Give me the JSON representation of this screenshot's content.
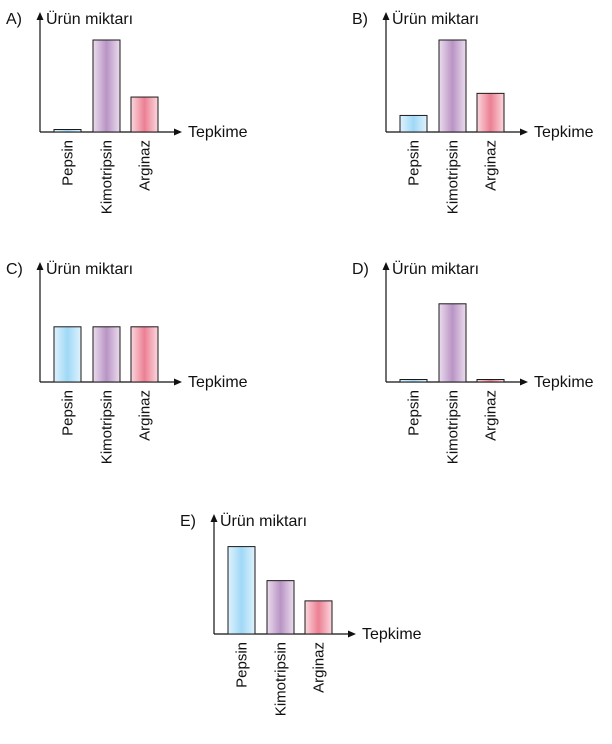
{
  "palette": {
    "axis": "#111111",
    "bar_stroke": "#1a1a1a",
    "pepsin": [
      "#dff2fd",
      "#9fd8f6"
    ],
    "kimotripsin": [
      "#ecdcee",
      "#b894c4"
    ],
    "arginaz": [
      "#fbd7dd",
      "#ec7f93"
    ]
  },
  "chart_data": [
    {
      "type": "bar",
      "option": "A)",
      "ylabel": "Ürün miktarı",
      "xlabel": "Tepkime",
      "categories": [
        "Pepsin",
        "Kimotripsin",
        "Arginaz"
      ],
      "values": [
        0.02,
        1.0,
        0.38
      ],
      "ylim": [
        0,
        1
      ]
    },
    {
      "type": "bar",
      "option": "B)",
      "ylabel": "Ürün miktarı",
      "xlabel": "Tepkime",
      "categories": [
        "Pepsin",
        "Kimotripsin",
        "Arginaz"
      ],
      "values": [
        0.18,
        1.0,
        0.42
      ],
      "ylim": [
        0,
        1
      ]
    },
    {
      "type": "bar",
      "option": "C)",
      "ylabel": "Ürün miktarı",
      "xlabel": "Tepkime",
      "categories": [
        "Pepsin",
        "Kimotripsin",
        "Arginaz"
      ],
      "values": [
        0.6,
        0.6,
        0.6
      ],
      "ylim": [
        0,
        1
      ]
    },
    {
      "type": "bar",
      "option": "D)",
      "ylabel": "Ürün miktarı",
      "xlabel": "Tepkime",
      "categories": [
        "Pepsin",
        "Kimotripsin",
        "Arginaz"
      ],
      "values": [
        0.02,
        0.85,
        0.02
      ],
      "ylim": [
        0,
        1
      ]
    },
    {
      "type": "bar",
      "option": "E)",
      "ylabel": "Ürün miktarı",
      "xlabel": "Tepkime",
      "categories": [
        "Pepsin",
        "Kimotripsin",
        "Arginaz"
      ],
      "values": [
        0.95,
        0.58,
        0.36
      ],
      "ylim": [
        0,
        1
      ]
    }
  ]
}
